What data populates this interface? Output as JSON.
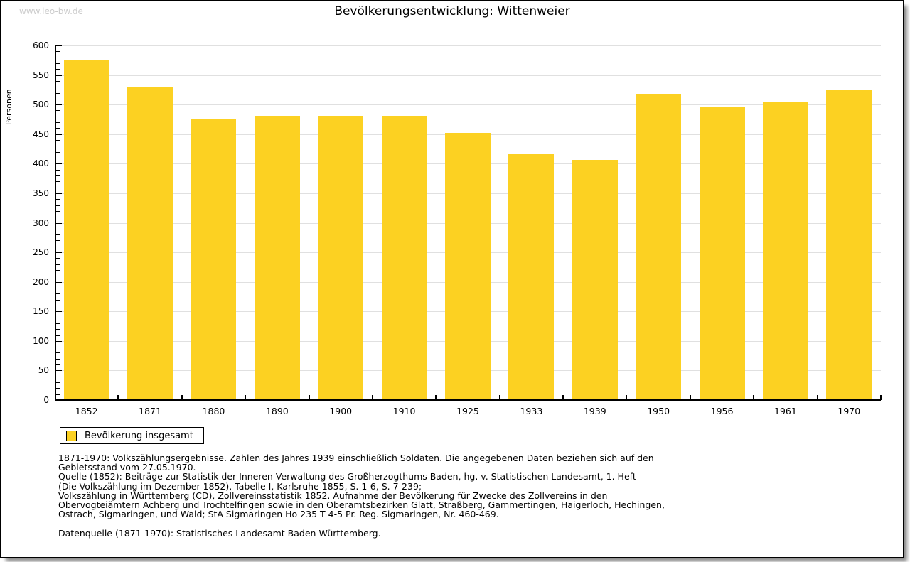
{
  "watermark": "www.leo-bw.de",
  "title": "Bevölkerungsentwicklung: Wittenweier",
  "legend": {
    "label": "Bevölkerung insgesamt"
  },
  "colors": {
    "bar": "#fcd122",
    "grid": "#e0e0e0",
    "axis": "#000000",
    "watermark": "#cccccc",
    "background": "#ffffff"
  },
  "chart_data": {
    "type": "bar",
    "title": "Bevölkerungsentwicklung: Wittenweier",
    "categories": [
      "1852",
      "1871",
      "1880",
      "1890",
      "1900",
      "1910",
      "1925",
      "1933",
      "1939",
      "1950",
      "1956",
      "1961",
      "1970"
    ],
    "values": [
      575,
      529,
      475,
      481,
      481,
      481,
      452,
      416,
      406,
      518,
      496,
      504,
      524
    ],
    "series": [
      {
        "name": "Bevölkerung insgesamt",
        "values": [
          575,
          529,
          475,
          481,
          481,
          481,
          452,
          416,
          406,
          518,
          496,
          504,
          524
        ]
      }
    ],
    "xlabel": "",
    "ylabel": "Personen",
    "ylim": [
      0,
      600
    ],
    "ytick_step": 50,
    "yminor_step": 10,
    "grid": true,
    "legend_position": "below-left"
  },
  "footnotes": {
    "lines": [
      "1871-1970: Volkszählungsergebnisse. Zahlen des Jahres 1939 einschließlich Soldaten. Die angegebenen Daten beziehen sich auf den",
      "Gebietsstand vom 27.05.1970.",
      "Quelle (1852): Beiträge zur Statistik der Inneren Verwaltung des Großherzogthums Baden, hg. v. Statistischen Landesamt, 1. Heft",
      "(Die Volkszählung im Dezember 1852), Tabelle I, Karlsruhe 1855, S. 1-6, S. 7-239;",
      "Volkszählung in Württemberg (CD), Zollvereinsstatistik 1852. Aufnahme der Bevölkerung für Zwecke des Zollvereins in den",
      "Obervogteiämtern Achberg und Trochtelfingen sowie in den Oberamtsbezirken Glatt, Straßberg, Gammertingen, Haigerloch, Hechingen,",
      "Ostrach, Sigmaringen, und Wald; StA Sigmaringen Ho 235 T 4-5 Pr. Reg. Sigmaringen, Nr. 460-469."
    ],
    "datasource": "Datenquelle (1871-1970): Statistisches Landesamt Baden-Württemberg."
  }
}
